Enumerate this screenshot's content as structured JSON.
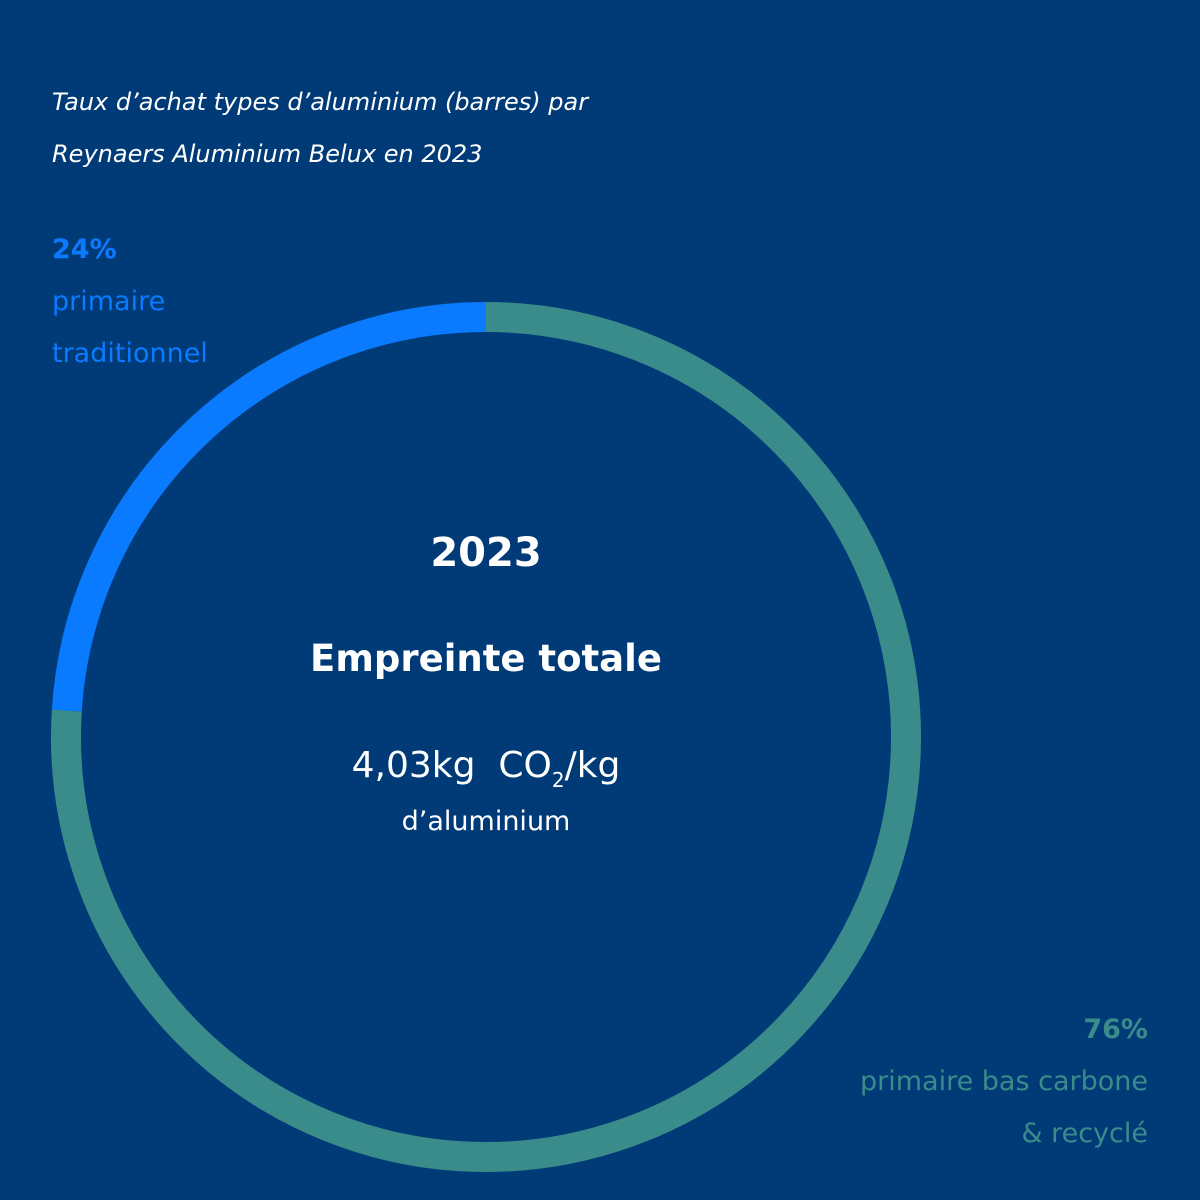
{
  "chart_data": {
    "type": "pie",
    "title_lines": [
      "Taux d’achat types d’aluminium (barres) par",
      "Reynaers Aluminium Belux en 2023"
    ],
    "slices": [
      {
        "value": 24,
        "value_label": "24%",
        "label_lines": [
          "primaire",
          "traditionnel"
        ],
        "color": "#0a7aff"
      },
      {
        "value": 76,
        "value_label": "76%",
        "label_lines": [
          "primaire bas carbone",
          "& recyclé"
        ],
        "color": "#3a8c8a"
      }
    ],
    "center": {
      "year": "2023",
      "heading": "Empreinte totale",
      "value": "4,03kg",
      "unit_main": "CO",
      "unit_sub": "2",
      "unit_rest": "/kg",
      "unit_line": "d’aluminium"
    }
  }
}
